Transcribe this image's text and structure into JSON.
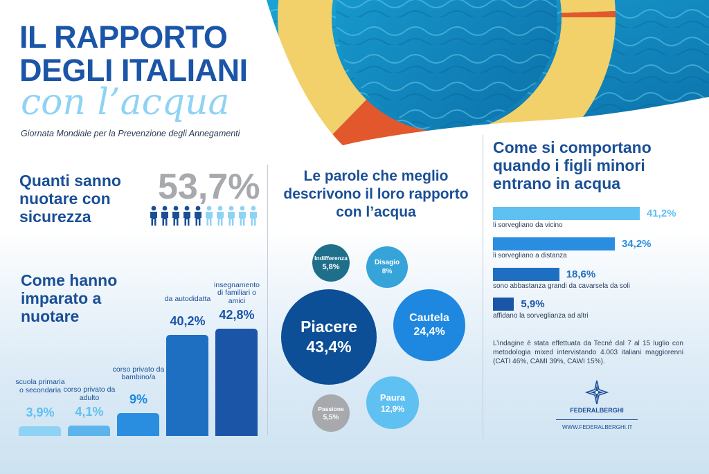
{
  "title": {
    "line1": "IL RAPPORTO",
    "line2": "DEGLI ITALIANI",
    "line3": "con l’acqua",
    "subtitle": "Giornata Mondiale per la Prevenzione degli Annegamenti"
  },
  "swim": {
    "title": "Quanti sanno nuotare con sicurezza",
    "value": "53,7%",
    "people_total": 10,
    "people_dark": 5,
    "color_dark": "#1a4f96",
    "color_light": "#8fd3f4"
  },
  "learn": {
    "title": "Come hanno imparato a nuotare",
    "bars": [
      {
        "label": "scuola primaria o secondaria",
        "value_text": "3,9%",
        "value": 3.9,
        "color": "#8fd3f4"
      },
      {
        "label": "corso privato da adulto",
        "value_text": "4,1%",
        "value": 4.1,
        "color": "#5bb4ec"
      },
      {
        "label": "corso privato da bambino/a",
        "value_text": "9%",
        "value": 9,
        "color": "#2a8ee0"
      },
      {
        "label": "da autodidatta",
        "value_text": "40,2%",
        "value": 40.2,
        "color": "#1e6fc2"
      },
      {
        "label": "insegnamento di familiari o amici",
        "value_text": "42,8%",
        "value": 42.8,
        "color": "#1a55a8"
      }
    ]
  },
  "words": {
    "title": "Le parole che meglio descrivono il  loro rapporto con l’acqua",
    "bubbles": [
      {
        "label": "Indifferenza",
        "value": "5,8%",
        "color": "#1f6f8b"
      },
      {
        "label": "Disagio",
        "value": "8%",
        "color": "#36a3d9"
      },
      {
        "label": "Piacere",
        "value": "43,4%",
        "color": "#0d4f96"
      },
      {
        "label": "Cautela",
        "value": "24,4%",
        "color": "#1e88e0"
      },
      {
        "label": "Paura",
        "value": "12,9%",
        "color": "#5fc0f2"
      },
      {
        "label": "Passione",
        "value": "5,5%",
        "color": "#a7a9ac"
      }
    ]
  },
  "kids": {
    "title": "Come si comportano quando i figli minori entrano in acqua",
    "items": [
      {
        "label": "li sorvegliano da vicino",
        "value_text": "41,2%",
        "value": 41.2,
        "color": "#5fc0f2"
      },
      {
        "label": "li sorvegliano a distanza",
        "value_text": "34,2%",
        "value": 34.2,
        "color": "#2a8ee0"
      },
      {
        "label": "sono abbastanza grandi da cavarsela da soli",
        "value_text": "18,6%",
        "value": 18.6,
        "color": "#1e6fc2"
      },
      {
        "label": "affidano la sorveglianza ad altri",
        "value_text": "5,9%",
        "value": 5.9,
        "color": "#1a55a8"
      }
    ],
    "note": "L’indagine è stata effettuata da Tecnè dal 7 al 15 luglio con metodologia mixed intervistando 4.003 italiani maggiorenni (CATI 46%, CAMI 39%, CAWI 15%)."
  },
  "logo": {
    "name": "FEDERALBERGHI",
    "url": "WWW.FEDERALBERGHI.IT",
    "icon": "compass-rose-icon"
  }
}
